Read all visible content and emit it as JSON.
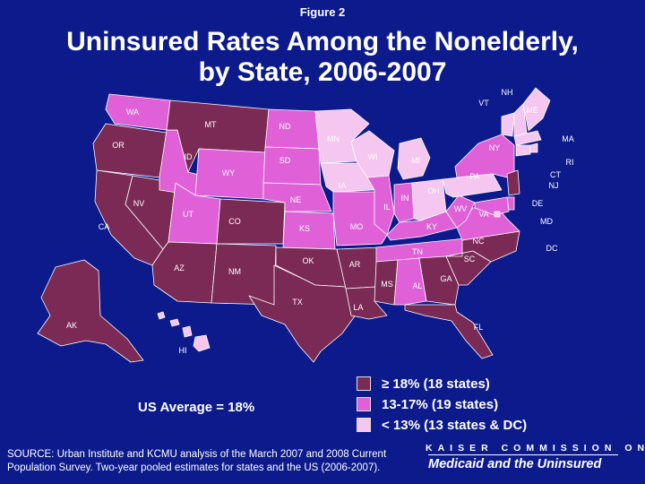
{
  "header": {
    "figure_label": "Figure 2",
    "title_line1": "Uninsured Rates Among the Nonelderly,",
    "title_line2": "by State, 2006-2007"
  },
  "colors": {
    "high": "#7a2a55",
    "mid": "#e060d8",
    "low": "#f5c6ef",
    "border": "#ffffff",
    "background": "#0c1a8c"
  },
  "legend": [
    {
      "label": "≥ 18% (18 states)",
      "color": "#7a2a55"
    },
    {
      "label": "13-17% (19 states)",
      "color": "#e060d8"
    },
    {
      "label": "< 13% (13 states & DC)",
      "color": "#f5c6ef"
    }
  ],
  "us_average": "US Average = 18%",
  "source": "SOURCE: Urban Institute and KCMU analysis of the March 2007 and 2008 Current Population Survey.  Two-year pooled estimates for states and the US (2006-2007).",
  "branding": {
    "top": "KAISER COMMISSION ON",
    "bottom": "Medicaid and the Uninsured"
  },
  "states": [
    {
      "abbr": "WA",
      "category": "mid"
    },
    {
      "abbr": "OR",
      "category": "high"
    },
    {
      "abbr": "CA",
      "category": "high"
    },
    {
      "abbr": "NV",
      "category": "high"
    },
    {
      "abbr": "ID",
      "category": "mid"
    },
    {
      "abbr": "MT",
      "category": "high"
    },
    {
      "abbr": "WY",
      "category": "mid"
    },
    {
      "abbr": "UT",
      "category": "mid"
    },
    {
      "abbr": "AZ",
      "category": "high"
    },
    {
      "abbr": "CO",
      "category": "high"
    },
    {
      "abbr": "NM",
      "category": "high"
    },
    {
      "abbr": "ND",
      "category": "mid"
    },
    {
      "abbr": "SD",
      "category": "mid"
    },
    {
      "abbr": "NE",
      "category": "mid"
    },
    {
      "abbr": "KS",
      "category": "mid"
    },
    {
      "abbr": "OK",
      "category": "high"
    },
    {
      "abbr": "TX",
      "category": "high"
    },
    {
      "abbr": "MN",
      "category": "low"
    },
    {
      "abbr": "IA",
      "category": "low"
    },
    {
      "abbr": "MO",
      "category": "mid"
    },
    {
      "abbr": "AR",
      "category": "high"
    },
    {
      "abbr": "LA",
      "category": "high"
    },
    {
      "abbr": "WI",
      "category": "low"
    },
    {
      "abbr": "IL",
      "category": "mid"
    },
    {
      "abbr": "MI",
      "category": "low"
    },
    {
      "abbr": "IN",
      "category": "mid"
    },
    {
      "abbr": "OH",
      "category": "low"
    },
    {
      "abbr": "KY",
      "category": "mid"
    },
    {
      "abbr": "TN",
      "category": "mid"
    },
    {
      "abbr": "MS",
      "category": "high"
    },
    {
      "abbr": "AL",
      "category": "mid"
    },
    {
      "abbr": "GA",
      "category": "high"
    },
    {
      "abbr": "FL",
      "category": "high"
    },
    {
      "abbr": "SC",
      "category": "high"
    },
    {
      "abbr": "NC",
      "category": "high"
    },
    {
      "abbr": "VA",
      "category": "mid"
    },
    {
      "abbr": "WV",
      "category": "mid"
    },
    {
      "abbr": "PA",
      "category": "low"
    },
    {
      "abbr": "NY",
      "category": "mid"
    },
    {
      "abbr": "VT",
      "category": "low"
    },
    {
      "abbr": "NH",
      "category": "low"
    },
    {
      "abbr": "ME",
      "category": "low"
    },
    {
      "abbr": "MA",
      "category": "low"
    },
    {
      "abbr": "RI",
      "category": "low"
    },
    {
      "abbr": "CT",
      "category": "low"
    },
    {
      "abbr": "NJ",
      "category": "high"
    },
    {
      "abbr": "DE",
      "category": "mid"
    },
    {
      "abbr": "MD",
      "category": "mid"
    },
    {
      "abbr": "DC",
      "category": "low"
    },
    {
      "abbr": "AK",
      "category": "high"
    },
    {
      "abbr": "HI",
      "category": "low"
    }
  ]
}
